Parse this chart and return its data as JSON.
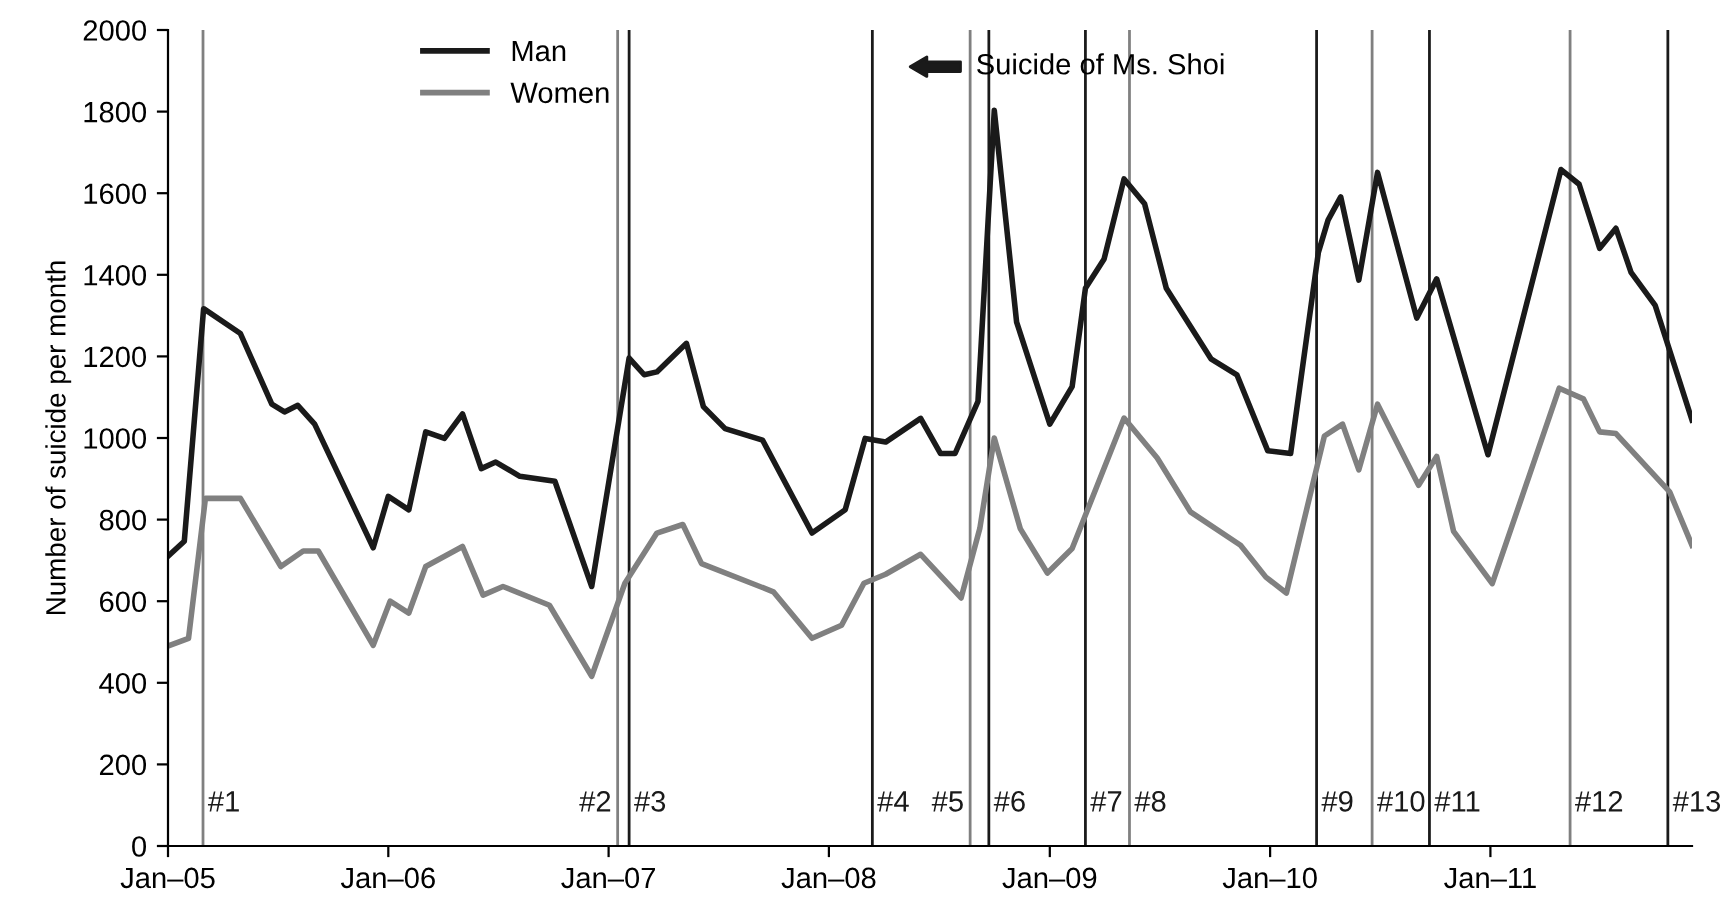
{
  "chart_data": {
    "type": "line",
    "ylabel": "Number of suicide per month",
    "xlim": [
      "2005-01-01",
      "2011-12-01"
    ],
    "ylim": [
      0,
      2000
    ],
    "xticks": [
      {
        "value": "2005-01-01",
        "label": "Jan–05"
      },
      {
        "value": "2006-01-01",
        "label": "Jan–06"
      },
      {
        "value": "2007-01-01",
        "label": "Jan–07"
      },
      {
        "value": "2008-01-01",
        "label": "Jan–08"
      },
      {
        "value": "2009-01-01",
        "label": "Jan–09"
      },
      {
        "value": "2010-01-01",
        "label": "Jan–10"
      },
      {
        "value": "2011-01-01",
        "label": "Jan–11"
      }
    ],
    "yticks": [
      0,
      200,
      400,
      600,
      800,
      1000,
      1200,
      1400,
      1600,
      1800,
      2000
    ],
    "grid": false,
    "legend": "top left",
    "marker": "none",
    "line_style": "solid",
    "series": [
      {
        "name": "Man",
        "color": "#1a1a1a",
        "x": [
          "2005-01-01",
          "2005-01-28",
          "2005-03-01",
          "2005-05-01",
          "2005-06-22",
          "2005-07-13",
          "2005-08-04",
          "2005-09-01",
          "2005-12-07",
          "2006-01-01",
          "2006-02-04",
          "2006-03-04",
          "2006-04-04",
          "2006-05-04",
          "2006-06-04",
          "2006-06-28",
          "2006-08-07",
          "2006-10-04",
          "2006-12-04",
          "2007-02-04",
          "2007-03-01",
          "2007-03-22",
          "2007-05-10",
          "2007-06-07",
          "2007-07-13",
          "2007-09-13",
          "2007-12-04",
          "2008-01-28",
          "2008-03-01",
          "2008-04-04",
          "2008-06-01",
          "2008-07-04",
          "2008-07-28",
          "2008-09-04",
          "2008-10-01",
          "2008-11-07",
          "2009-01-01",
          "2009-02-07",
          "2009-03-01",
          "2009-04-01",
          "2009-05-04",
          "2009-06-07",
          "2009-07-13",
          "2009-09-25",
          "2009-11-07",
          "2009-12-28",
          "2010-02-04",
          "2010-03-22",
          "2010-04-07",
          "2010-04-28",
          "2010-05-28",
          "2010-06-28",
          "2010-09-01",
          "2010-10-04",
          "2010-12-28",
          "2011-04-28",
          "2011-05-28",
          "2011-07-01",
          "2011-07-28",
          "2011-08-22",
          "2011-10-01",
          "2011-12-01"
        ],
        "values": [
          710,
          747,
          1317,
          1256,
          1083,
          1064,
          1080,
          1034,
          731,
          857,
          824,
          1015,
          999,
          1059,
          925,
          941,
          906,
          894,
          636,
          1196,
          1155,
          1162,
          1232,
          1077,
          1023,
          995,
          767,
          824,
          999,
          990,
          1048,
          962,
          962,
          1090,
          1803,
          1284,
          1034,
          1126,
          1367,
          1439,
          1635,
          1574,
          1367,
          1194,
          1155,
          969,
          962,
          1455,
          1534,
          1591,
          1387,
          1651,
          1294,
          1390,
          959,
          1658,
          1622,
          1465,
          1514,
          1406,
          1325,
          1044
        ]
      },
      {
        "name": "Women",
        "color": "#808080",
        "x": [
          "2005-01-01",
          "2005-02-04",
          "2005-03-04",
          "2005-05-01",
          "2005-07-07",
          "2005-08-13",
          "2005-09-07",
          "2005-12-07",
          "2006-01-04",
          "2006-02-04",
          "2006-03-04",
          "2006-05-04",
          "2006-06-07",
          "2006-07-10",
          "2006-09-25",
          "2006-12-04",
          "2007-01-28",
          "2007-03-22",
          "2007-05-04",
          "2007-06-04",
          "2007-10-01",
          "2007-12-04",
          "2008-01-22",
          "2008-02-28",
          "2008-04-04",
          "2008-06-01",
          "2008-08-07",
          "2008-09-07",
          "2008-10-01",
          "2008-11-13",
          "2008-12-28",
          "2009-02-07",
          "2009-05-04",
          "2009-06-28",
          "2009-08-22",
          "2009-11-13",
          "2009-12-25",
          "2010-01-28",
          "2010-04-01",
          "2010-05-01",
          "2010-05-28",
          "2010-06-28",
          "2010-09-04",
          "2010-10-04",
          "2010-11-01",
          "2011-01-04",
          "2011-04-25",
          "2011-06-04",
          "2011-07-01",
          "2011-07-28",
          "2011-10-25",
          "2011-12-01"
        ],
        "values": [
          490,
          509,
          852,
          852,
          685,
          723,
          723,
          492,
          600,
          571,
          685,
          734,
          615,
          636,
          590,
          416,
          644,
          767,
          788,
          692,
          623,
          509,
          541,
          644,
          666,
          715,
          608,
          778,
          1000,
          778,
          669,
          729,
          1049,
          951,
          819,
          737,
          659,
          620,
          1005,
          1034,
          922,
          1083,
          884,
          955,
          771,
          643,
          1122,
          1096,
          1015,
          1011,
          868,
          737
        ]
      }
    ],
    "ref_lines": [
      {
        "axis": "x",
        "value": "2005-02-28",
        "label": "#1",
        "color": "#808080"
      },
      {
        "axis": "x",
        "value": "2007-01-16",
        "label": "#2",
        "color": "#808080"
      },
      {
        "axis": "x",
        "value": "2007-02-04",
        "label": "#3",
        "color": "#1a1a1a"
      },
      {
        "axis": "x",
        "value": "2008-03-13",
        "label": "#4",
        "color": "#1a1a1a"
      },
      {
        "axis": "x",
        "value": "2008-08-22",
        "label": "#5",
        "color": "#808080"
      },
      {
        "axis": "x",
        "value": "2008-09-22",
        "label": "#6",
        "color": "#1a1a1a"
      },
      {
        "axis": "x",
        "value": "2009-03-01",
        "label": "#7",
        "color": "#1a1a1a"
      },
      {
        "axis": "x",
        "value": "2009-05-13",
        "label": "#8",
        "color": "#808080"
      },
      {
        "axis": "x",
        "value": "2010-03-19",
        "label": "#9",
        "color": "#1a1a1a"
      },
      {
        "axis": "x",
        "value": "2010-06-19",
        "label": "#10",
        "color": "#808080"
      },
      {
        "axis": "x",
        "value": "2010-09-22",
        "label": "#11",
        "color": "#1a1a1a"
      },
      {
        "axis": "x",
        "value": "2011-05-13",
        "label": "#12",
        "color": "#808080"
      },
      {
        "axis": "x",
        "value": "2011-10-22",
        "label": "#13",
        "color": "#1a1a1a"
      }
    ],
    "annotations": [
      "Suicide of Ms. Shoi"
    ]
  }
}
